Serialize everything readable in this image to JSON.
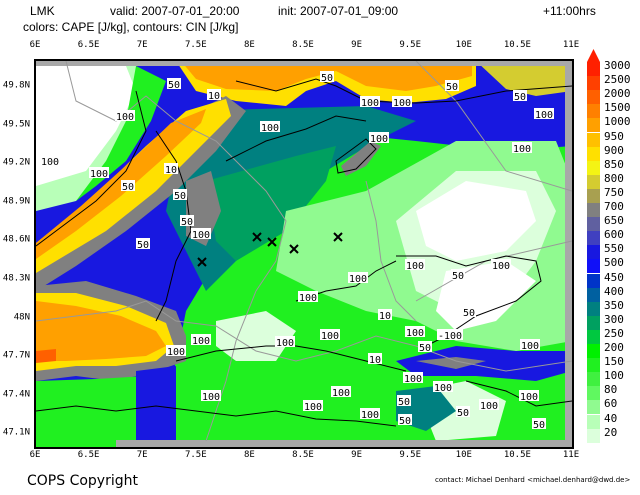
{
  "header": {
    "model": "LMK",
    "valid": "valid: 2007-07-01_20:00",
    "init": "init: 2007-07-01_09:00",
    "lead": "+11:00hrs",
    "fields": "colors: CAPE [J/kg], contours: CIN [J/kg]"
  },
  "axes": {
    "lon_labels": [
      "6E",
      "6.5E",
      "7E",
      "7.5E",
      "8E",
      "8.5E",
      "9E",
      "9.5E",
      "10E",
      "10.5E",
      "11E"
    ],
    "lat_labels": [
      "49.8N",
      "49.5N",
      "49.2N",
      "48.9N",
      "48.6N",
      "48.3N",
      "48N",
      "47.7N",
      "47.4N",
      "47.1N"
    ],
    "lon_range": [
      6,
      11
    ],
    "lat_range": [
      47.0,
      50.0
    ]
  },
  "colorbar": {
    "levels": [
      "3000",
      "2500",
      "2000",
      "1500",
      "1000",
      "950",
      "900",
      "850",
      "800",
      "750",
      "700",
      "650",
      "600",
      "550",
      "500",
      "450",
      "400",
      "350",
      "300",
      "250",
      "200",
      "150",
      "100",
      "80",
      "60",
      "40",
      "20"
    ],
    "colors": [
      "#FF2000",
      "#FF4000",
      "#FF6000",
      "#FF8000",
      "#FFA000",
      "#FFC000",
      "#FFE000",
      "#F4F414",
      "#D4CC30",
      "#A8A050",
      "#808080",
      "#6060A0",
      "#4040C0",
      "#1818E0",
      "#1010F8",
      "#0034C8",
      "#0060A0",
      "#008080",
      "#00A060",
      "#00C840",
      "#00F000",
      "#20F020",
      "#40F040",
      "#60F860",
      "#90FA90",
      "#B8FFB8",
      "#DCFFDC"
    ]
  },
  "contour_labels": [
    "50",
    "10",
    "100",
    "100",
    "100",
    "10",
    "50",
    "50",
    "100",
    "50",
    "100",
    "50",
    "50",
    "100",
    "100",
    "100",
    "50",
    "50",
    "100",
    "100",
    "100",
    "100",
    "100",
    "100",
    "100",
    "100",
    "100",
    "10",
    "10",
    "100",
    "100",
    "100",
    "100",
    "50",
    "50",
    "100",
    "100",
    "100",
    "50",
    "100",
    "50",
    "-100",
    "50",
    "100",
    "100",
    "100",
    "50",
    "50"
  ],
  "stations": [
    "x-marker",
    "x-marker",
    "x-marker",
    "x-marker",
    "x-marker"
  ],
  "footer": {
    "copyright": "COPS Copyright",
    "contact": "contact: Michael Denhard <michael.denhard@dwd.de>"
  }
}
